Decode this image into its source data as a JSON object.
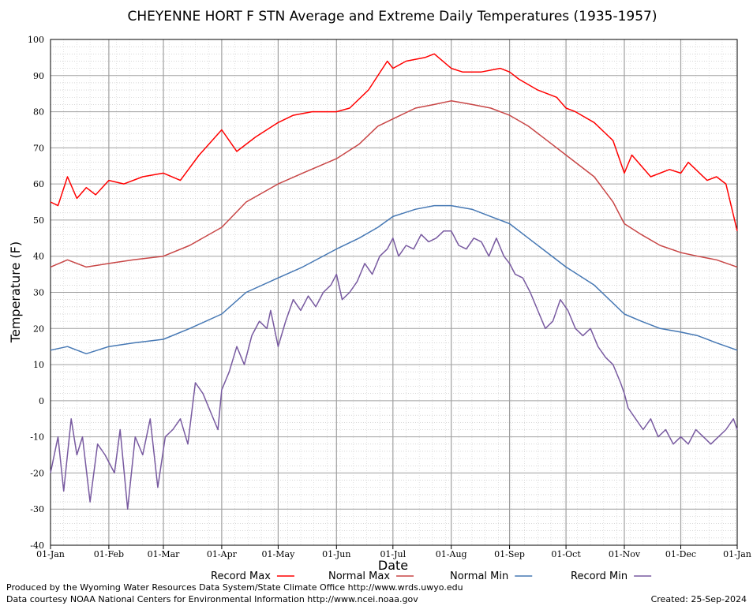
{
  "chart_data": {
    "type": "line",
    "title": "CHEYENNE HORT F STN Average and Extreme Daily Temperatures (1935-1957)",
    "xlabel": "Date",
    "ylabel": "Temperature (F)",
    "ylim": [
      -40,
      100
    ],
    "yticks": [
      "100",
      "90",
      "80",
      "70",
      "60",
      "50",
      "40",
      "30",
      "20",
      "10",
      "0",
      "-10",
      "-20",
      "-30",
      "-40"
    ],
    "xlim": [
      1,
      366
    ],
    "xticks": [
      {
        "day": 1,
        "label": "01-Jan"
      },
      {
        "day": 32,
        "label": "01-Feb"
      },
      {
        "day": 61,
        "label": "01-Mar"
      },
      {
        "day": 92,
        "label": "01-Apr"
      },
      {
        "day": 122,
        "label": "01-May"
      },
      {
        "day": 153,
        "label": "01-Jun"
      },
      {
        "day": 183,
        "label": "01-Jul"
      },
      {
        "day": 214,
        "label": "01-Aug"
      },
      {
        "day": 245,
        "label": "01-Sep"
      },
      {
        "day": 275,
        "label": "01-Oct"
      },
      {
        "day": 306,
        "label": "01-Nov"
      },
      {
        "day": 336,
        "label": "01-Dec"
      },
      {
        "day": 366,
        "label": "01-Jan"
      }
    ],
    "grid": true,
    "legend_position": "bottom",
    "series": [
      {
        "name": "Record Max",
        "color": "#ff0000",
        "x": [
          1,
          5,
          10,
          15,
          20,
          25,
          32,
          40,
          50,
          61,
          70,
          80,
          92,
          100,
          110,
          122,
          130,
          140,
          153,
          160,
          170,
          180,
          183,
          190,
          200,
          205,
          214,
          220,
          230,
          240,
          245,
          250,
          260,
          270,
          275,
          280,
          290,
          300,
          306,
          310,
          320,
          330,
          336,
          340,
          350,
          355,
          360,
          366
        ],
        "y": [
          55,
          54,
          62,
          56,
          59,
          57,
          61,
          60,
          62,
          63,
          61,
          68,
          75,
          69,
          73,
          77,
          79,
          80,
          80,
          81,
          86,
          94,
          92,
          94,
          95,
          96,
          92,
          91,
          91,
          92,
          91,
          89,
          86,
          84,
          81,
          80,
          77,
          72,
          63,
          68,
          62,
          64,
          63,
          66,
          61,
          62,
          60,
          47
        ]
      },
      {
        "name": "Normal Max",
        "color": "#c84646",
        "x": [
          1,
          10,
          20,
          32,
          45,
          61,
          75,
          92,
          105,
          122,
          135,
          153,
          165,
          175,
          183,
          195,
          205,
          214,
          225,
          235,
          245,
          255,
          265,
          275,
          290,
          300,
          306,
          315,
          325,
          336,
          345,
          355,
          366
        ],
        "y": [
          37,
          39,
          37,
          38,
          39,
          40,
          43,
          48,
          55,
          60,
          63,
          67,
          71,
          76,
          78,
          81,
          82,
          83,
          82,
          81,
          79,
          76,
          72,
          68,
          62,
          55,
          49,
          46,
          43,
          41,
          40,
          39,
          37
        ]
      },
      {
        "name": "Normal Min",
        "color": "#4678b4",
        "x": [
          1,
          10,
          20,
          32,
          45,
          61,
          75,
          92,
          105,
          122,
          135,
          153,
          165,
          175,
          183,
          195,
          205,
          214,
          225,
          235,
          245,
          255,
          265,
          275,
          290,
          300,
          306,
          315,
          325,
          336,
          345,
          355,
          366
        ],
        "y": [
          14,
          15,
          13,
          15,
          16,
          17,
          20,
          24,
          30,
          34,
          37,
          42,
          45,
          48,
          51,
          53,
          54,
          54,
          53,
          51,
          49,
          45,
          41,
          37,
          32,
          27,
          24,
          22,
          20,
          19,
          18,
          16,
          14
        ]
      },
      {
        "name": "Record Min",
        "color": "#785aa0",
        "x": [
          1,
          5,
          8,
          12,
          15,
          18,
          22,
          26,
          30,
          35,
          38,
          42,
          46,
          50,
          54,
          58,
          62,
          66,
          70,
          74,
          78,
          82,
          86,
          90,
          92,
          96,
          100,
          104,
          108,
          112,
          116,
          118,
          122,
          126,
          130,
          134,
          138,
          142,
          146,
          150,
          153,
          156,
          160,
          164,
          168,
          172,
          176,
          180,
          183,
          186,
          190,
          194,
          198,
          202,
          206,
          210,
          214,
          218,
          222,
          226,
          230,
          234,
          238,
          242,
          245,
          248,
          252,
          256,
          260,
          264,
          268,
          272,
          276,
          280,
          284,
          288,
          292,
          296,
          300,
          304,
          306,
          308,
          312,
          316,
          320,
          324,
          328,
          332,
          336,
          340,
          344,
          348,
          352,
          356,
          360,
          364,
          366
        ],
        "y": [
          -20,
          -10,
          -25,
          -5,
          -15,
          -10,
          -28,
          -12,
          -15,
          -20,
          -8,
          -30,
          -10,
          -15,
          -5,
          -24,
          -10,
          -8,
          -5,
          -12,
          5,
          2,
          -3,
          -8,
          3,
          8,
          15,
          10,
          18,
          22,
          20,
          25,
          15,
          22,
          28,
          25,
          29,
          26,
          30,
          32,
          35,
          28,
          30,
          33,
          38,
          35,
          40,
          42,
          45,
          40,
          43,
          42,
          46,
          44,
          45,
          47,
          47,
          43,
          42,
          45,
          44,
          40,
          45,
          40,
          38,
          35,
          34,
          30,
          25,
          20,
          22,
          28,
          25,
          20,
          18,
          20,
          15,
          12,
          10,
          5,
          2,
          -2,
          -5,
          -8,
          -5,
          -10,
          -8,
          -12,
          -10,
          -12,
          -8,
          -10,
          -12,
          -10,
          -8,
          -5,
          -8
        ]
      }
    ]
  },
  "footer": {
    "produced_by": "Produced by the Wyoming Water Resources Data System/State Climate Office http://www.wrds.uwyo.edu",
    "data_courtesy": "Data courtesy NOAA National Centers for Environmental Information http://www.ncei.noaa.gov",
    "created": "Created:  25-Sep-2024"
  }
}
